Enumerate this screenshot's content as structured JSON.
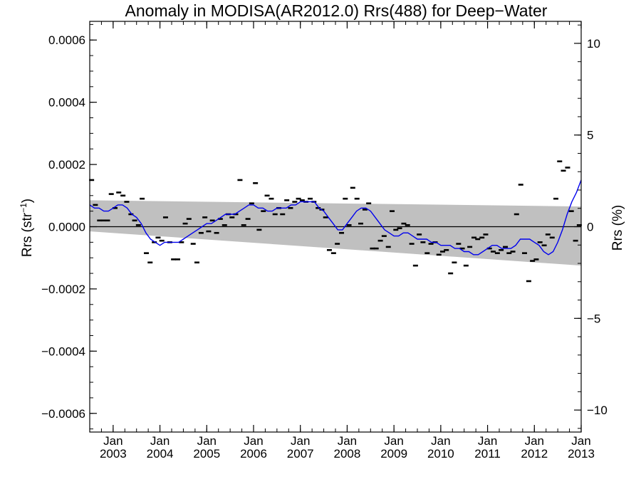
{
  "chart_data": {
    "type": "line",
    "title": "Anomaly in MODISA(AR2012.0) Rrs(488) for Deep−Water",
    "ylabel_left": "Rrs (str",
    "ylabel_left_sup": "−1",
    "ylabel_left_tail": ")",
    "ylabel_right": "Rrs (%)",
    "xlim": [
      2002.5,
      2013.0
    ],
    "ylim_left": [
      -0.00066,
      0.00066
    ],
    "ylim_right": [
      -11.2,
      11.2
    ],
    "x_ticks": [
      {
        "top": "Jan",
        "bottom": "2003",
        "x": 2003
      },
      {
        "top": "Jan",
        "bottom": "2004",
        "x": 2004
      },
      {
        "top": "Jan",
        "bottom": "2005",
        "x": 2005
      },
      {
        "top": "Jan",
        "bottom": "2006",
        "x": 2006
      },
      {
        "top": "Jan",
        "bottom": "2007",
        "x": 2007
      },
      {
        "top": "Jan",
        "bottom": "2008",
        "x": 2008
      },
      {
        "top": "Jan",
        "bottom": "2009",
        "x": 2009
      },
      {
        "top": "Jan",
        "bottom": "2010",
        "x": 2010
      },
      {
        "top": "Jan",
        "bottom": "2011",
        "x": 2011
      },
      {
        "top": "Jan",
        "bottom": "2012",
        "x": 2012
      },
      {
        "top": "Jan",
        "bottom": "2013",
        "x": 2013
      }
    ],
    "y_ticks_left": [
      {
        "label": "0.0006",
        "v": 0.0006
      },
      {
        "label": "0.0004",
        "v": 0.0004
      },
      {
        "label": "0.0002",
        "v": 0.0002
      },
      {
        "label": "0.0000",
        "v": 0.0
      },
      {
        "label": "−0.0002",
        "v": -0.0002
      },
      {
        "label": "−0.0004",
        "v": -0.0004
      },
      {
        "label": "−0.0006",
        "v": -0.0006
      }
    ],
    "y_ticks_right": [
      {
        "label": "10",
        "v": 10
      },
      {
        "label": "5",
        "v": 5
      },
      {
        "label": "0",
        "v": 0
      },
      {
        "label": "−5",
        "v": -5
      },
      {
        "label": "−10",
        "v": -10
      }
    ],
    "band": {
      "x": [
        2002.5,
        2013.0
      ],
      "upper": [
        8.5e-05,
        6.5e-05
      ],
      "lower": [
        -1.5e-05,
        -0.000125
      ]
    },
    "monthly_points": {
      "x": [
        2002.54,
        2002.62,
        2002.71,
        2002.79,
        2002.88,
        2002.96,
        2003.04,
        2003.12,
        2003.21,
        2003.29,
        2003.38,
        2003.46,
        2003.54,
        2003.62,
        2003.71,
        2003.79,
        2003.88,
        2003.96,
        2004.04,
        2004.12,
        2004.21,
        2004.29,
        2004.38,
        2004.46,
        2004.54,
        2004.62,
        2004.71,
        2004.79,
        2004.88,
        2004.96,
        2005.04,
        2005.12,
        2005.21,
        2005.29,
        2005.38,
        2005.46,
        2005.54,
        2005.62,
        2005.71,
        2005.79,
        2005.88,
        2005.96,
        2006.04,
        2006.12,
        2006.21,
        2006.29,
        2006.38,
        2006.46,
        2006.54,
        2006.62,
        2006.71,
        2006.79,
        2006.88,
        2006.96,
        2007.04,
        2007.12,
        2007.21,
        2007.29,
        2007.38,
        2007.46,
        2007.54,
        2007.62,
        2007.71,
        2007.79,
        2007.88,
        2007.96,
        2008.04,
        2008.12,
        2008.21,
        2008.29,
        2008.38,
        2008.46,
        2008.54,
        2008.62,
        2008.71,
        2008.79,
        2008.88,
        2008.96,
        2009.04,
        2009.12,
        2009.21,
        2009.29,
        2009.38,
        2009.46,
        2009.54,
        2009.62,
        2009.71,
        2009.79,
        2009.88,
        2009.96,
        2010.04,
        2010.12,
        2010.21,
        2010.29,
        2010.38,
        2010.46,
        2010.54,
        2010.62,
        2010.71,
        2010.79,
        2010.88,
        2010.96,
        2011.04,
        2011.12,
        2011.21,
        2011.29,
        2011.38,
        2011.46,
        2011.54,
        2011.62,
        2011.71,
        2011.79,
        2011.88,
        2011.96,
        2012.04,
        2012.12,
        2012.21,
        2012.29,
        2012.38,
        2012.46,
        2012.54,
        2012.62,
        2012.71,
        2012.79,
        2012.88,
        2012.96
      ],
      "y": [
        0.00015,
        7e-05,
        2e-05,
        2e-05,
        2e-05,
        0.000105,
        6e-05,
        0.00011,
        0.0001,
        8e-05,
        4e-05,
        2e-05,
        5e-06,
        9e-05,
        -8.5e-05,
        -0.000115,
        -5e-05,
        -3.5e-05,
        -4.5e-05,
        3e-05,
        -5e-05,
        -0.000105,
        -0.000105,
        -5e-05,
        1e-05,
        2.5e-05,
        -5.5e-05,
        -0.000115,
        -2e-05,
        3e-05,
        -1.5e-05,
        2e-05,
        -2e-05,
        2.5e-05,
        5e-06,
        4e-05,
        3e-05,
        4e-05,
        0.00015,
        5e-06,
        2.5e-05,
        7.5e-05,
        0.00014,
        -1e-05,
        5e-05,
        0.0001,
        9e-05,
        4e-05,
        6e-05,
        4e-05,
        8.5e-05,
        6e-05,
        8e-05,
        9e-05,
        8.5e-05,
        8e-05,
        9e-05,
        8e-05,
        6e-05,
        5.5e-05,
        3e-05,
        -7.5e-05,
        -8.5e-05,
        -5.5e-05,
        -2e-05,
        9e-05,
        5e-06,
        0.000125,
        9e-05,
        1e-05,
        5.5e-05,
        7.5e-05,
        -7e-05,
        -7e-05,
        -4.5e-05,
        -3e-05,
        -6.5e-05,
        5e-05,
        -1e-05,
        -5e-06,
        1e-05,
        5e-06,
        -5.5e-05,
        -0.000125,
        -2.5e-05,
        -5e-05,
        -8.5e-05,
        -5.5e-05,
        -5e-05,
        -9e-05,
        -8e-05,
        -7.5e-05,
        -0.00015,
        -0.000115,
        -5.5e-05,
        -7e-05,
        -0.000125,
        -6.5e-05,
        -3.5e-05,
        -4e-05,
        -3.5e-05,
        -2.5e-05,
        -7e-05,
        -8e-05,
        -8.5e-05,
        -7.5e-05,
        -6.5e-05,
        -8.5e-05,
        -8e-05,
        4e-05,
        0.000135,
        -8.5e-05,
        -0.000175,
        -0.00011,
        -0.000105,
        -5e-05,
        -6e-05,
        -2.5e-05,
        -3.5e-05,
        9e-05,
        0.00021,
        0.00018,
        0.00019,
        5e-05,
        -4.5e-05,
        5e-06
      ]
    },
    "running_mean": {
      "x": [
        2002.5,
        2002.6,
        2002.7,
        2002.8,
        2002.9,
        2003.0,
        2003.1,
        2003.2,
        2003.3,
        2003.4,
        2003.5,
        2003.6,
        2003.7,
        2003.8,
        2003.9,
        2004.0,
        2004.1,
        2004.2,
        2004.3,
        2004.4,
        2004.5,
        2004.6,
        2004.7,
        2004.8,
        2004.9,
        2005.0,
        2005.1,
        2005.2,
        2005.3,
        2005.4,
        2005.5,
        2005.6,
        2005.7,
        2005.8,
        2005.9,
        2006.0,
        2006.1,
        2006.2,
        2006.3,
        2006.4,
        2006.5,
        2006.6,
        2006.7,
        2006.8,
        2006.9,
        2007.0,
        2007.1,
        2007.2,
        2007.3,
        2007.4,
        2007.5,
        2007.6,
        2007.7,
        2007.8,
        2007.9,
        2008.0,
        2008.1,
        2008.2,
        2008.3,
        2008.4,
        2008.5,
        2008.6,
        2008.7,
        2008.8,
        2008.9,
        2009.0,
        2009.1,
        2009.2,
        2009.3,
        2009.4,
        2009.5,
        2009.6,
        2009.7,
        2009.8,
        2009.9,
        2010.0,
        2010.1,
        2010.2,
        2010.3,
        2010.4,
        2010.5,
        2010.6,
        2010.7,
        2010.8,
        2010.9,
        2011.0,
        2011.1,
        2011.2,
        2011.3,
        2011.4,
        2011.5,
        2011.6,
        2011.7,
        2011.8,
        2011.9,
        2012.0,
        2012.1,
        2012.2,
        2012.3,
        2012.4,
        2012.5,
        2012.6,
        2012.7,
        2012.8,
        2012.9,
        2013.0
      ],
      "y": [
        7e-05,
        6e-05,
        6e-05,
        5e-05,
        5e-05,
        6e-05,
        7e-05,
        7e-05,
        6e-05,
        4e-05,
        3e-05,
        1e-05,
        -2e-05,
        -4e-05,
        -5e-05,
        -6e-05,
        -5e-05,
        -5e-05,
        -5e-05,
        -5e-05,
        -4e-05,
        -3e-05,
        -2e-05,
        -1e-05,
        0.0,
        1e-05,
        1e-05,
        2e-05,
        3e-05,
        4e-05,
        4e-05,
        4e-05,
        5e-05,
        6e-05,
        7e-05,
        7e-05,
        6e-05,
        6e-05,
        5e-05,
        5e-05,
        6e-05,
        6e-05,
        6e-05,
        7e-05,
        7e-05,
        8e-05,
        8e-05,
        8e-05,
        8e-05,
        6e-05,
        5e-05,
        3e-05,
        1e-05,
        -1e-05,
        -1e-05,
        1e-05,
        3e-05,
        5e-05,
        6e-05,
        6e-05,
        5e-05,
        3e-05,
        1e-05,
        -1e-05,
        -2e-05,
        -3e-05,
        -3e-05,
        -2e-05,
        -2e-05,
        -3e-05,
        -4e-05,
        -4e-05,
        -4e-05,
        -5e-05,
        -5e-05,
        -6e-05,
        -6e-05,
        -6e-05,
        -7e-05,
        -7e-05,
        -8e-05,
        -8e-05,
        -9e-05,
        -9e-05,
        -8e-05,
        -7e-05,
        -6e-05,
        -6e-05,
        -7e-05,
        -7e-05,
        -7e-05,
        -6e-05,
        -4e-05,
        -4e-05,
        -4e-05,
        -5e-05,
        -6e-05,
        -8e-05,
        -9e-05,
        -8e-05,
        -5e-05,
        -1e-05,
        4e-05,
        8e-05,
        0.00011,
        0.00015
      ]
    },
    "grid": false,
    "colors": {
      "line": "#0000ee",
      "band": "#c0c0c0",
      "marker": "#000000",
      "zero_line": "#000000"
    }
  }
}
